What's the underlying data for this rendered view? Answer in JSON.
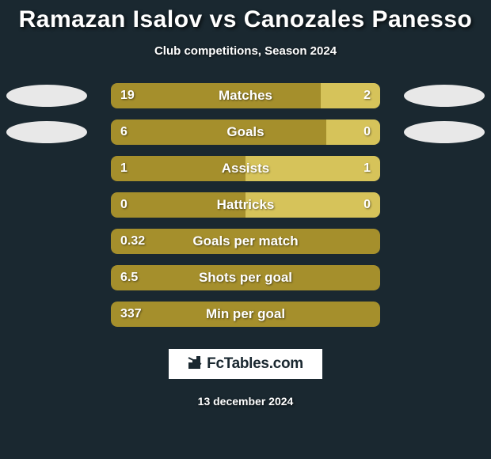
{
  "title": "Ramazan Isalov vs Canozales Panesso",
  "subtitle": "Club competitions, Season 2024",
  "colors": {
    "background": "#1a2830",
    "bar_primary": "#a58f2c",
    "bar_secondary": "#d6c35a",
    "oval": "#e8e8e8",
    "text": "#ffffff"
  },
  "rows": [
    {
      "label": "Matches",
      "left": "19",
      "right": "2",
      "left_pct": 78,
      "right_pct": 22,
      "ovals": true
    },
    {
      "label": "Goals",
      "left": "6",
      "right": "0",
      "left_pct": 80,
      "right_pct": 20,
      "ovals": true
    },
    {
      "label": "Assists",
      "left": "1",
      "right": "1",
      "left_pct": 50,
      "right_pct": 50,
      "ovals": false
    },
    {
      "label": "Hattricks",
      "left": "0",
      "right": "0",
      "left_pct": 50,
      "right_pct": 50,
      "ovals": false
    },
    {
      "label": "Goals per match",
      "left": "0.32",
      "right": "",
      "left_pct": 100,
      "right_pct": 0,
      "ovals": false,
      "full": true
    },
    {
      "label": "Shots per goal",
      "left": "6.5",
      "right": "",
      "left_pct": 100,
      "right_pct": 0,
      "ovals": false,
      "full": true
    },
    {
      "label": "Min per goal",
      "left": "337",
      "right": "",
      "left_pct": 100,
      "right_pct": 0,
      "ovals": false,
      "full": true
    }
  ],
  "logo": {
    "brand": "FcTables.com"
  },
  "date": "13 december 2024"
}
